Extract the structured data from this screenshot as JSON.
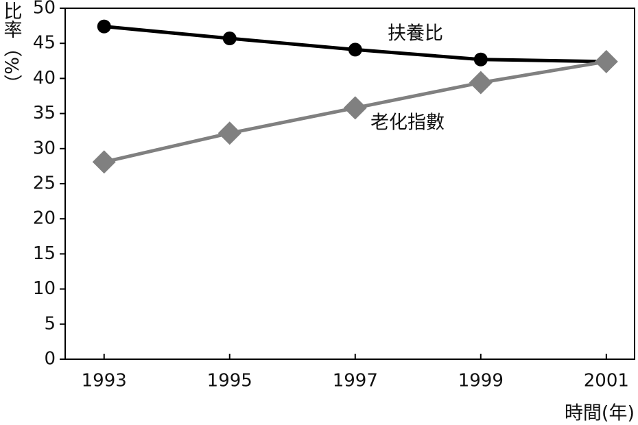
{
  "chart_data": {
    "type": "line",
    "y_label": "比率（%）",
    "x_label": "時間(年)",
    "x": [
      1993,
      1995,
      1997,
      1999,
      2001
    ],
    "xlim": [
      1992.38,
      2001.45
    ],
    "xticks": [
      1993,
      1995,
      1997,
      1999,
      2001
    ],
    "ylim": [
      0,
      50
    ],
    "yticks": [
      0,
      5,
      10,
      15,
      20,
      25,
      30,
      35,
      40,
      45,
      50
    ],
    "series": [
      {
        "name": "扶養比",
        "color": "#000000",
        "marker": "circle",
        "values": [
          47.4,
          45.7,
          44.1,
          42.7,
          42.4
        ]
      },
      {
        "name": "老化指數",
        "color": "#808080",
        "marker": "diamond",
        "values": [
          28.1,
          32.2,
          35.8,
          39.4,
          42.4
        ]
      }
    ]
  }
}
